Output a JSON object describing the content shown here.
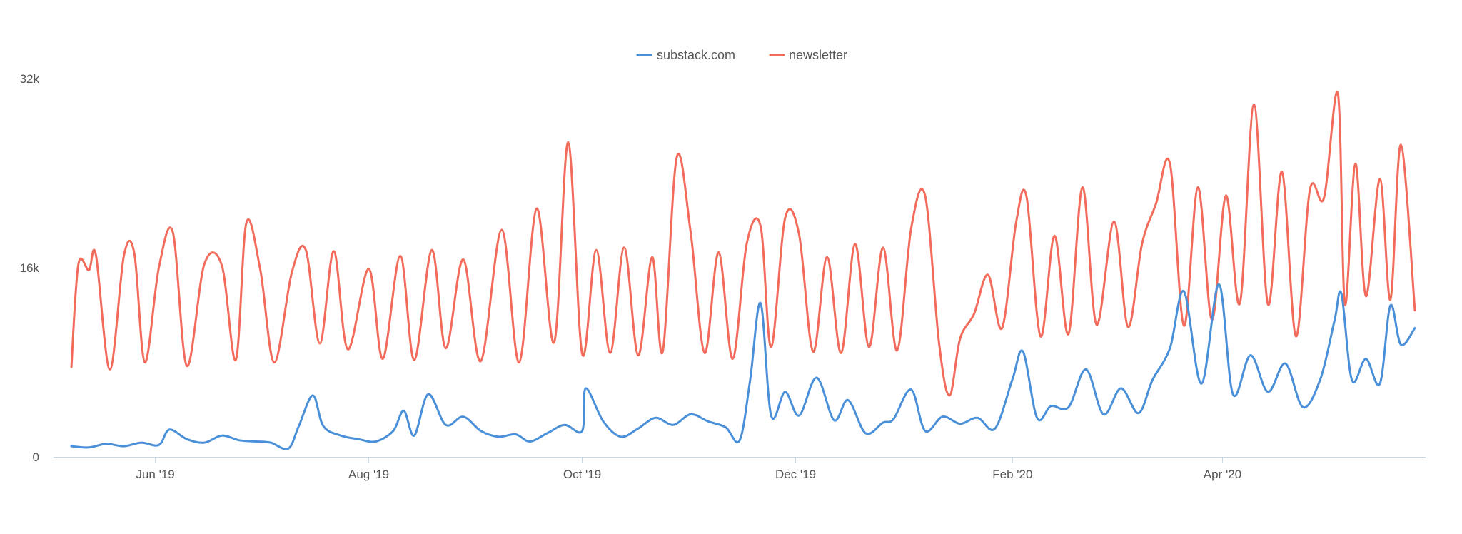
{
  "chart_data": {
    "type": "line",
    "title": "",
    "xlabel": "",
    "ylabel": "",
    "x_range": [
      "2019-05-08",
      "2020-05-26"
    ],
    "ylim": [
      0,
      32000
    ],
    "y_ticks": [
      {
        "value": 0,
        "label": "0"
      },
      {
        "value": 16000,
        "label": "16k"
      },
      {
        "value": 32000,
        "label": "32k"
      }
    ],
    "x_ticks": [
      {
        "date": "2019-06-01",
        "label": "Jun '19"
      },
      {
        "date": "2019-08-01",
        "label": "Aug '19"
      },
      {
        "date": "2019-10-01",
        "label": "Oct '19"
      },
      {
        "date": "2019-12-01",
        "label": "Dec '19"
      },
      {
        "date": "2020-02-01",
        "label": "Feb '20"
      },
      {
        "date": "2020-04-01",
        "label": "Apr '20"
      }
    ],
    "grid": false,
    "legend_position": "top-center",
    "series": [
      {
        "name": "substack.com",
        "color": "#4a90d9",
        "points": [
          [
            "2019-05-08",
            900
          ],
          [
            "2019-05-13",
            800
          ],
          [
            "2019-05-18",
            1100
          ],
          [
            "2019-05-23",
            900
          ],
          [
            "2019-05-28",
            1200
          ],
          [
            "2019-06-02",
            1000
          ],
          [
            "2019-06-05",
            2300
          ],
          [
            "2019-06-10",
            1500
          ],
          [
            "2019-06-15",
            1200
          ],
          [
            "2019-06-20",
            1800
          ],
          [
            "2019-06-25",
            1400
          ],
          [
            "2019-06-30",
            1300
          ],
          [
            "2019-07-04",
            1200
          ],
          [
            "2019-07-09",
            700
          ],
          [
            "2019-07-12",
            2600
          ],
          [
            "2019-07-16",
            5200
          ],
          [
            "2019-07-19",
            2600
          ],
          [
            "2019-07-24",
            1800
          ],
          [
            "2019-07-29",
            1500
          ],
          [
            "2019-08-03",
            1300
          ],
          [
            "2019-08-08",
            2200
          ],
          [
            "2019-08-11",
            3900
          ],
          [
            "2019-08-14",
            1800
          ],
          [
            "2019-08-18",
            5300
          ],
          [
            "2019-08-23",
            2700
          ],
          [
            "2019-08-28",
            3400
          ],
          [
            "2019-09-02",
            2200
          ],
          [
            "2019-09-07",
            1700
          ],
          [
            "2019-09-12",
            1900
          ],
          [
            "2019-09-16",
            1300
          ],
          [
            "2019-09-21",
            2000
          ],
          [
            "2019-09-26",
            2700
          ],
          [
            "2019-10-01",
            2200
          ],
          [
            "2019-10-02",
            5800
          ],
          [
            "2019-10-07",
            3000
          ],
          [
            "2019-10-12",
            1700
          ],
          [
            "2019-10-17",
            2400
          ],
          [
            "2019-10-22",
            3300
          ],
          [
            "2019-10-27",
            2700
          ],
          [
            "2019-11-01",
            3600
          ],
          [
            "2019-11-06",
            3000
          ],
          [
            "2019-11-11",
            2500
          ],
          [
            "2019-11-15",
            1400
          ],
          [
            "2019-11-18",
            6500
          ],
          [
            "2019-11-21",
            13000
          ],
          [
            "2019-11-24",
            3500
          ],
          [
            "2019-11-28",
            5500
          ],
          [
            "2019-12-02",
            3500
          ],
          [
            "2019-12-07",
            6700
          ],
          [
            "2019-12-12",
            3100
          ],
          [
            "2019-12-16",
            4800
          ],
          [
            "2019-12-21",
            2000
          ],
          [
            "2019-12-26",
            2900
          ],
          [
            "2019-12-29",
            3200
          ],
          [
            "2020-01-03",
            5700
          ],
          [
            "2020-01-07",
            2200
          ],
          [
            "2020-01-12",
            3400
          ],
          [
            "2020-01-17",
            2800
          ],
          [
            "2020-01-22",
            3300
          ],
          [
            "2020-01-27",
            2400
          ],
          [
            "2020-02-01",
            6600
          ],
          [
            "2020-02-04",
            8900
          ],
          [
            "2020-02-08",
            3300
          ],
          [
            "2020-02-12",
            4300
          ],
          [
            "2020-02-17",
            4200
          ],
          [
            "2020-02-22",
            7400
          ],
          [
            "2020-02-27",
            3600
          ],
          [
            "2020-03-03",
            5800
          ],
          [
            "2020-03-08",
            3700
          ],
          [
            "2020-03-12",
            6500
          ],
          [
            "2020-03-17",
            9200
          ],
          [
            "2020-03-21",
            14000
          ],
          [
            "2020-03-26",
            6200
          ],
          [
            "2020-03-31",
            14600
          ],
          [
            "2020-04-04",
            5300
          ],
          [
            "2020-04-09",
            8600
          ],
          [
            "2020-04-14",
            5500
          ],
          [
            "2020-04-19",
            7900
          ],
          [
            "2020-04-24",
            4200
          ],
          [
            "2020-04-29",
            6600
          ],
          [
            "2020-05-03",
            11500
          ],
          [
            "2020-05-05",
            13800
          ],
          [
            "2020-05-08",
            6500
          ],
          [
            "2020-05-12",
            8300
          ],
          [
            "2020-05-16",
            6200
          ],
          [
            "2020-05-19",
            12800
          ],
          [
            "2020-05-22",
            9500
          ],
          [
            "2020-05-26",
            10900
          ]
        ]
      },
      {
        "name": "newsletter",
        "color": "#f26b5b",
        "points": [
          [
            "2019-05-08",
            7600
          ],
          [
            "2019-05-10",
            16300
          ],
          [
            "2019-05-13",
            15800
          ],
          [
            "2019-05-15",
            17100
          ],
          [
            "2019-05-19",
            7400
          ],
          [
            "2019-05-23",
            17000
          ],
          [
            "2019-05-26",
            17200
          ],
          [
            "2019-05-29",
            8000
          ],
          [
            "2019-06-02",
            16000
          ],
          [
            "2019-06-06",
            19000
          ],
          [
            "2019-06-10",
            7700
          ],
          [
            "2019-06-15",
            16300
          ],
          [
            "2019-06-20",
            16200
          ],
          [
            "2019-06-24",
            8200
          ],
          [
            "2019-06-27",
            19800
          ],
          [
            "2019-07-01",
            15800
          ],
          [
            "2019-07-05",
            8000
          ],
          [
            "2019-07-10",
            15600
          ],
          [
            "2019-07-14",
            17500
          ],
          [
            "2019-07-18",
            9600
          ],
          [
            "2019-07-22",
            17400
          ],
          [
            "2019-07-26",
            9100
          ],
          [
            "2019-08-01",
            15900
          ],
          [
            "2019-08-05",
            8300
          ],
          [
            "2019-08-10",
            17000
          ],
          [
            "2019-08-14",
            8200
          ],
          [
            "2019-08-19",
            17500
          ],
          [
            "2019-08-23",
            9200
          ],
          [
            "2019-08-28",
            16700
          ],
          [
            "2019-09-02",
            8100
          ],
          [
            "2019-09-08",
            19200
          ],
          [
            "2019-09-13",
            8000
          ],
          [
            "2019-09-18",
            21000
          ],
          [
            "2019-09-23",
            9700
          ],
          [
            "2019-09-27",
            26600
          ],
          [
            "2019-10-01",
            8700
          ],
          [
            "2019-10-05",
            17500
          ],
          [
            "2019-10-09",
            8800
          ],
          [
            "2019-10-13",
            17700
          ],
          [
            "2019-10-17",
            8600
          ],
          [
            "2019-10-21",
            16900
          ],
          [
            "2019-10-24",
            8900
          ],
          [
            "2019-10-28",
            25300
          ],
          [
            "2019-11-01",
            19000
          ],
          [
            "2019-11-05",
            8800
          ],
          [
            "2019-11-09",
            17300
          ],
          [
            "2019-11-13",
            8300
          ],
          [
            "2019-11-17",
            18000
          ],
          [
            "2019-11-21",
            19500
          ],
          [
            "2019-11-24",
            9300
          ],
          [
            "2019-11-28",
            20200
          ],
          [
            "2019-12-02",
            18800
          ],
          [
            "2019-12-06",
            8900
          ],
          [
            "2019-12-10",
            16900
          ],
          [
            "2019-12-14",
            8800
          ],
          [
            "2019-12-18",
            18000
          ],
          [
            "2019-12-22",
            9300
          ],
          [
            "2019-12-26",
            17700
          ],
          [
            "2019-12-30",
            9000
          ],
          [
            "2020-01-03",
            19300
          ],
          [
            "2020-01-07",
            22100
          ],
          [
            "2020-01-11",
            9600
          ],
          [
            "2020-01-14",
            5200
          ],
          [
            "2020-01-17",
            10000
          ],
          [
            "2020-01-21",
            12100
          ],
          [
            "2020-01-25",
            15400
          ],
          [
            "2020-01-29",
            10900
          ],
          [
            "2020-02-02",
            19800
          ],
          [
            "2020-02-05",
            22000
          ],
          [
            "2020-02-09",
            10200
          ],
          [
            "2020-02-13",
            18700
          ],
          [
            "2020-02-17",
            10400
          ],
          [
            "2020-02-21",
            22800
          ],
          [
            "2020-02-25",
            11200
          ],
          [
            "2020-03-01",
            19900
          ],
          [
            "2020-03-05",
            11000
          ],
          [
            "2020-03-09",
            18000
          ],
          [
            "2020-03-13",
            21400
          ],
          [
            "2020-03-17",
            24800
          ],
          [
            "2020-03-21",
            11100
          ],
          [
            "2020-03-25",
            22800
          ],
          [
            "2020-03-29",
            11600
          ],
          [
            "2020-04-02",
            22100
          ],
          [
            "2020-04-06",
            13000
          ],
          [
            "2020-04-10",
            29800
          ],
          [
            "2020-04-14",
            12900
          ],
          [
            "2020-04-18",
            24100
          ],
          [
            "2020-04-22",
            10200
          ],
          [
            "2020-04-26",
            22600
          ],
          [
            "2020-04-30",
            21900
          ],
          [
            "2020-05-04",
            30700
          ],
          [
            "2020-05-06",
            12900
          ],
          [
            "2020-05-09",
            24800
          ],
          [
            "2020-05-12",
            13600
          ],
          [
            "2020-05-16",
            23500
          ],
          [
            "2020-05-19",
            13300
          ],
          [
            "2020-05-22",
            26400
          ],
          [
            "2020-05-26",
            12400
          ]
        ]
      }
    ]
  }
}
